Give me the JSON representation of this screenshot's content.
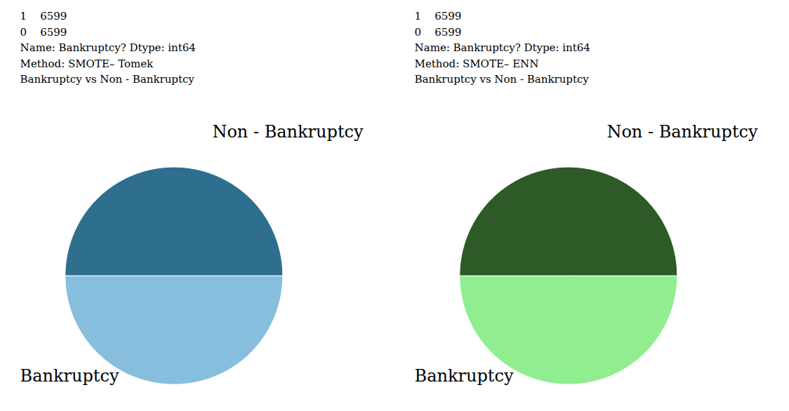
{
  "chart_data": [
    {
      "type": "pie",
      "annotations": [
        "1    6599",
        "0    6599",
        "Name: Bankruptcy? Dtype: int64",
        "Method: SMOTE– Tomek",
        "Bankruptcy vs Non - Bankruptcy"
      ],
      "categories": [
        "Non - Bankruptcy",
        "Bankruptcy"
      ],
      "values": [
        6599,
        6599
      ],
      "colors": [
        "#87BEDD",
        "#2E6E8E"
      ]
    },
    {
      "type": "pie",
      "annotations": [
        "1    6599",
        "0    6599",
        "Name: Bankruptcy? Dtype: int64",
        "Method: SMOTE– ENN",
        "Bankruptcy vs Non - Bankruptcy"
      ],
      "categories": [
        "Non - Bankruptcy",
        "Bankruptcy"
      ],
      "values": [
        6599,
        6599
      ],
      "colors": [
        "#90EE90",
        "#2D5A27"
      ]
    }
  ]
}
